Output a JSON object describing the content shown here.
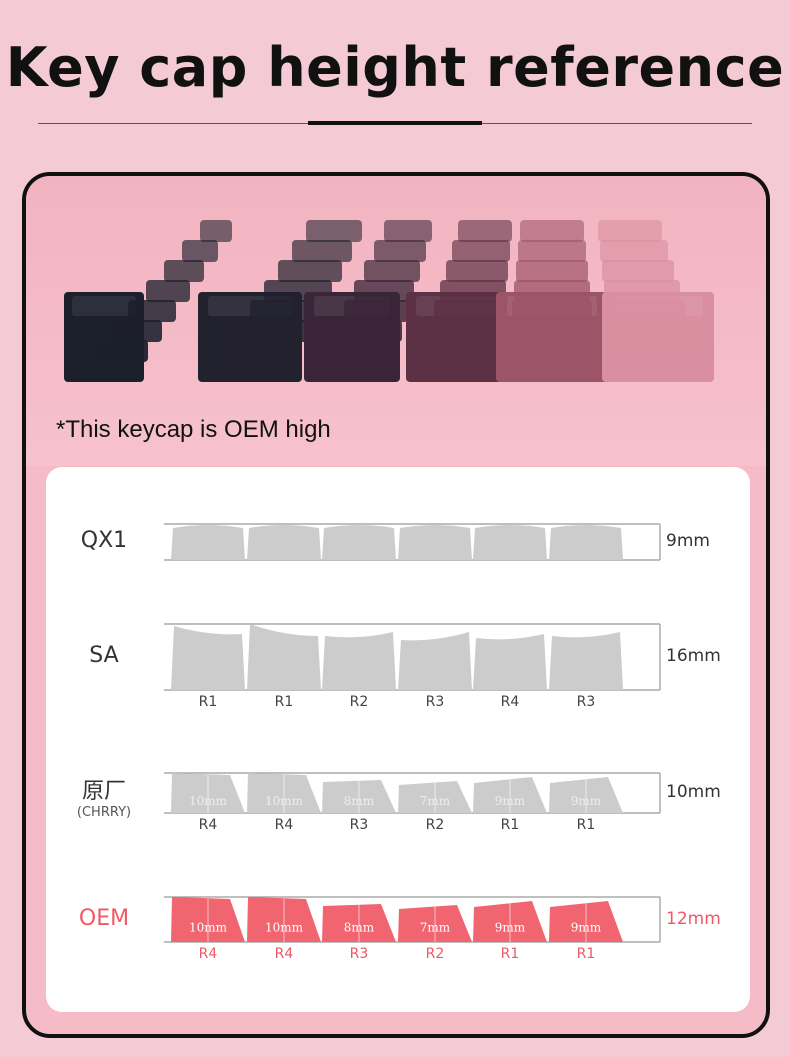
{
  "title": "Key cap height reference",
  "caption": "*This keycap is OEM high",
  "colors": {
    "background": "#f4cbd5",
    "gray_key": "#cccccc",
    "oem_key": "#f06570",
    "oem_text": "#ee5a66"
  },
  "profiles": [
    {
      "name": "QX1",
      "sub": "",
      "height": "9mm",
      "rows": [],
      "key_heights": [],
      "highlight": false
    },
    {
      "name": "SA",
      "sub": "",
      "height": "16mm",
      "rows": [
        "R1",
        "R1",
        "R2",
        "R3",
        "R4",
        "R3"
      ],
      "key_heights": [],
      "highlight": false
    },
    {
      "name": "原厂",
      "sub": "(CHRRY)",
      "height": "10mm",
      "rows": [
        "R4",
        "R4",
        "R3",
        "R2",
        "R1",
        "R1"
      ],
      "key_heights": [
        "10mm",
        "10mm",
        "8mm",
        "7mm",
        "9mm",
        "9mm"
      ],
      "highlight": false
    },
    {
      "name": "OEM",
      "sub": "",
      "height": "12mm",
      "rows": [
        "R4",
        "R4",
        "R3",
        "R2",
        "R1",
        "R1"
      ],
      "key_heights": [
        "10mm",
        "10mm",
        "8mm",
        "7mm",
        "9mm",
        "9mm"
      ],
      "highlight": true
    }
  ]
}
